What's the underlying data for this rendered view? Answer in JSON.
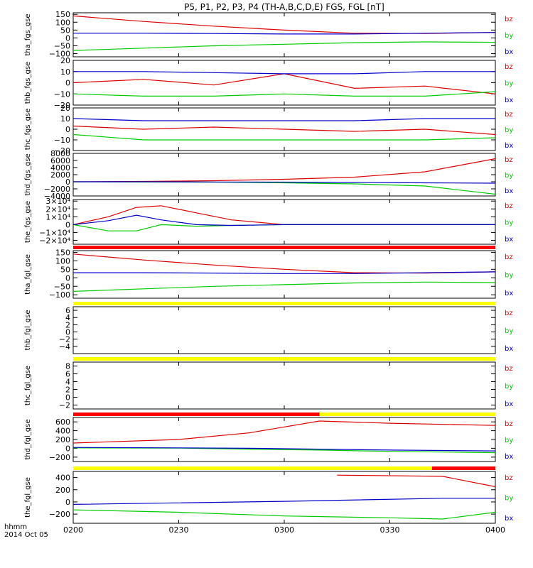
{
  "chart_data": {
    "type": "line",
    "title": "P5, P1, P2, P3, P4 (TH-A,B,C,D,E) FGS, FGL [nT]",
    "xlabel": "hhmm",
    "date_label": "2014 Oct 05",
    "x_ticks": [
      "0200",
      "0230",
      "0300",
      "0330",
      "0400"
    ],
    "x_range": [
      "02:00",
      "04:00"
    ],
    "legend": [
      "bz",
      "by",
      "bx"
    ],
    "colors": {
      "bz": "#dd0000",
      "by": "#00cc00",
      "bx": "#0000cc"
    },
    "panels": [
      {
        "ylabel": "tha_fgs_gse",
        "ylim": [
          -120,
          160
        ],
        "yticks": [
          "150",
          "100",
          "50",
          "0",
          "−50",
          "−100"
        ],
        "bar_above": null,
        "series": [
          {
            "name": "bz",
            "x": [
              "02:00",
              "02:20",
              "02:40",
              "03:00",
              "03:20",
              "03:40",
              "04:00"
            ],
            "y": [
              140,
              105,
              75,
              50,
              30,
              28,
              35
            ]
          },
          {
            "name": "by",
            "x": [
              "02:00",
              "02:20",
              "02:40",
              "03:00",
              "03:20",
              "03:40",
              "04:00"
            ],
            "y": [
              -80,
              -65,
              -50,
              -40,
              -30,
              -25,
              -28
            ]
          },
          {
            "name": "bx",
            "x": [
              "02:00",
              "02:20",
              "02:40",
              "03:00",
              "03:20",
              "03:40",
              "04:00"
            ],
            "y": [
              30,
              30,
              28,
              25,
              25,
              30,
              35
            ]
          }
        ]
      },
      {
        "ylabel": "thb_fgs_gse",
        "ylim": [
          -20,
          20
        ],
        "yticks": [
          "20",
          "10",
          "0",
          "−10",
          "−20"
        ],
        "bar_above": null,
        "series": [
          {
            "name": "bz",
            "x": [
              "02:00",
              "02:20",
              "02:40",
              "03:00",
              "03:20",
              "03:40",
              "04:00"
            ],
            "y": [
              0,
              3,
              -2,
              8,
              -5,
              -3,
              -10
            ]
          },
          {
            "name": "by",
            "x": [
              "02:00",
              "02:20",
              "02:40",
              "03:00",
              "03:20",
              "03:40",
              "04:00"
            ],
            "y": [
              -10,
              -12,
              -12,
              -10,
              -12,
              -12,
              -8
            ]
          },
          {
            "name": "bx",
            "x": [
              "02:00",
              "02:20",
              "02:40",
              "03:00",
              "03:20",
              "03:40",
              "04:00"
            ],
            "y": [
              10,
              10,
              9,
              8,
              8,
              10,
              10
            ]
          }
        ]
      },
      {
        "ylabel": "thc_fgs_gse",
        "ylim": [
          -20,
          20
        ],
        "yticks": [
          "20",
          "10",
          "0",
          "−10",
          "−20"
        ],
        "bar_above": null,
        "series": [
          {
            "name": "bz",
            "x": [
              "02:00",
              "02:20",
              "02:40",
              "03:00",
              "03:20",
              "03:40",
              "04:00"
            ],
            "y": [
              3,
              0,
              2,
              0,
              -2,
              0,
              -5
            ]
          },
          {
            "name": "by",
            "x": [
              "02:00",
              "02:20",
              "02:40",
              "03:00",
              "03:20",
              "03:40",
              "04:00"
            ],
            "y": [
              -5,
              -10,
              -10,
              -10,
              -10,
              -10,
              -8
            ]
          },
          {
            "name": "bx",
            "x": [
              "02:00",
              "02:20",
              "02:40",
              "03:00",
              "03:20",
              "03:40",
              "04:00"
            ],
            "y": [
              10,
              8,
              8,
              8,
              8,
              10,
              10
            ]
          }
        ]
      },
      {
        "ylabel": "thd_fgs_gse",
        "ylim": [
          -4000,
          8000
        ],
        "yticks": [
          "8000",
          "6000",
          "4000",
          "2000",
          "0",
          "−2000",
          "−4000"
        ],
        "bar_above": null,
        "series": [
          {
            "name": "bz",
            "x": [
              "02:00",
              "02:20",
              "02:40",
              "03:00",
              "03:20",
              "03:40",
              "04:00"
            ],
            "y": [
              0,
              100,
              300,
              700,
              1300,
              2800,
              6500
            ]
          },
          {
            "name": "by",
            "x": [
              "02:00",
              "02:20",
              "02:40",
              "03:00",
              "03:20",
              "03:40",
              "04:00"
            ],
            "y": [
              0,
              -50,
              -100,
              -300,
              -600,
              -1200,
              -3500
            ]
          },
          {
            "name": "bx",
            "x": [
              "02:00",
              "02:20",
              "02:40",
              "03:00",
              "03:20",
              "03:40",
              "04:00"
            ],
            "y": [
              0,
              0,
              -50,
              -100,
              -200,
              -300,
              -400
            ]
          }
        ]
      },
      {
        "ylabel": "the_fgs_gse",
        "ylim": [
          -25000,
          32000
        ],
        "yticks": [
          "3×10⁴",
          "2×10⁴",
          "1×10⁴",
          "0",
          "−1×10⁴",
          "−2×10⁴"
        ],
        "bar_above": null,
        "series": [
          {
            "name": "bz",
            "x": [
              "02:00",
              "02:10",
              "02:18",
              "02:25",
              "02:35",
              "02:45",
              "03:00",
              "04:00"
            ],
            "y": [
              0,
              10000,
              22000,
              24000,
              15000,
              6000,
              0,
              0
            ]
          },
          {
            "name": "by",
            "x": [
              "02:00",
              "02:10",
              "02:18",
              "02:25",
              "02:35",
              "02:45",
              "03:00",
              "04:00"
            ],
            "y": [
              0,
              -8000,
              -8000,
              0,
              -2000,
              -1000,
              0,
              0
            ]
          },
          {
            "name": "bx",
            "x": [
              "02:00",
              "02:10",
              "02:18",
              "02:25",
              "02:35",
              "02:45",
              "03:00",
              "04:00"
            ],
            "y": [
              0,
              5000,
              12000,
              6000,
              0,
              -1000,
              0,
              0
            ]
          }
        ]
      },
      {
        "ylabel": "tha_fgl_gse",
        "ylim": [
          -120,
          160
        ],
        "yticks": [
          "150",
          "100",
          "50",
          "0",
          "−50",
          "−100"
        ],
        "bar_above": {
          "color": "#ff0000"
        },
        "series": [
          {
            "name": "bz",
            "x": [
              "02:00",
              "02:20",
              "02:40",
              "03:00",
              "03:20",
              "03:40",
              "04:00"
            ],
            "y": [
              140,
              105,
              75,
              50,
              30,
              28,
              35
            ]
          },
          {
            "name": "by",
            "x": [
              "02:00",
              "02:20",
              "02:40",
              "03:00",
              "03:20",
              "03:40",
              "04:00"
            ],
            "y": [
              -80,
              -65,
              -50,
              -40,
              -30,
              -25,
              -28
            ]
          },
          {
            "name": "bx",
            "x": [
              "02:00",
              "02:20",
              "02:40",
              "03:00",
              "03:20",
              "03:40",
              "04:00"
            ],
            "y": [
              30,
              30,
              28,
              25,
              25,
              30,
              35
            ]
          }
        ]
      },
      {
        "ylabel": "thb_fgl_gse",
        "ylim": [
          -6,
          7
        ],
        "yticks": [
          "6",
          "4",
          "2",
          "0",
          "−2",
          "−4"
        ],
        "bar_above": {
          "color": "#ffff00"
        },
        "series": []
      },
      {
        "ylabel": "thc_fgl_gse",
        "ylim": [
          -3,
          9
        ],
        "yticks": [
          "8",
          "6",
          "4",
          "2",
          "0",
          "−2"
        ],
        "bar_above": {
          "color": "#ffff00"
        },
        "series": []
      },
      {
        "ylabel": "thd_fgl_gse",
        "ylim": [
          -300,
          700
        ],
        "yticks": [
          "600",
          "400",
          "200",
          "0",
          "−200"
        ],
        "bar_above": {
          "segments": [
            {
              "from": "02:00",
              "to": "03:10",
              "color": "#ff0000"
            },
            {
              "from": "03:10",
              "to": "04:00",
              "color": "#ffff00"
            }
          ]
        },
        "series": [
          {
            "name": "bz",
            "x": [
              "02:00",
              "02:30",
              "02:50",
              "03:10",
              "03:30",
              "04:00"
            ],
            "y": [
              120,
              200,
              350,
              620,
              570,
              520
            ]
          },
          {
            "name": "by",
            "x": [
              "02:00",
              "02:30",
              "02:50",
              "03:10",
              "03:30",
              "04:00"
            ],
            "y": [
              10,
              5,
              -20,
              -40,
              -70,
              -100
            ]
          },
          {
            "name": "bx",
            "x": [
              "02:00",
              "02:30",
              "02:50",
              "03:10",
              "03:30",
              "04:00"
            ],
            "y": [
              20,
              10,
              0,
              -20,
              -40,
              -60
            ]
          }
        ]
      },
      {
        "ylabel": "the_fgl_gse",
        "ylim": [
          -350,
          500
        ],
        "yticks": [
          "400",
          "200",
          "0",
          "−200"
        ],
        "bar_above": {
          "segments": [
            {
              "from": "02:00",
              "to": "03:42",
              "color": "#ffff00"
            },
            {
              "from": "03:42",
              "to": "04:00",
              "color": "#ff0000"
            }
          ]
        },
        "series": [
          {
            "name": "bz",
            "x": [
              "03:15",
              "03:45",
              "04:00"
            ],
            "y": [
              440,
              420,
              250
            ]
          },
          {
            "name": "by",
            "x": [
              "02:00",
              "02:30",
              "03:00",
              "03:30",
              "03:45",
              "04:00"
            ],
            "y": [
              -130,
              -170,
              -230,
              -260,
              -280,
              -170
            ]
          },
          {
            "name": "bx",
            "x": [
              "02:00",
              "03:00",
              "03:45",
              "04:00"
            ],
            "y": [
              -40,
              10,
              60,
              60
            ]
          }
        ]
      }
    ]
  }
}
